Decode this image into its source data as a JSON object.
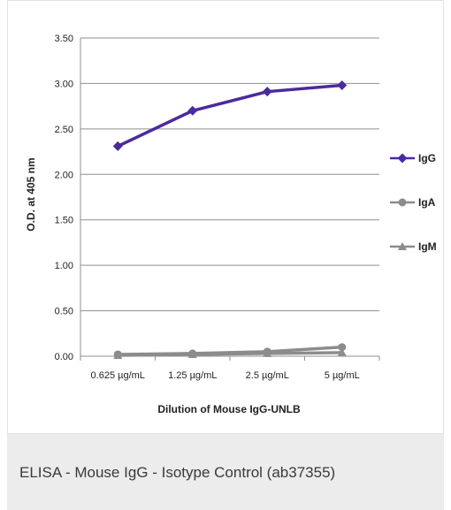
{
  "chart_data": {
    "type": "line",
    "xlabel": "Dilution of Mouse IgG-UNLB",
    "ylabel": "O.D. at 405 nm",
    "categories": [
      "0.625 µg/mL",
      "1.25 µg/mL",
      "2.5 µg/mL",
      "5 µg/mL"
    ],
    "ylim": [
      0,
      3.5
    ],
    "yticks": [
      "0.00",
      "0.50",
      "1.00",
      "1.50",
      "2.00",
      "2.50",
      "3.00",
      "3.50"
    ],
    "grid": true,
    "legend_position": "right",
    "series": [
      {
        "name": "IgG",
        "values": [
          2.31,
          2.7,
          2.91,
          2.98
        ],
        "color": "#4b2a9e",
        "marker": "diamond"
      },
      {
        "name": "IgA",
        "values": [
          0.02,
          0.03,
          0.05,
          0.1
        ],
        "color": "#8c8c8c",
        "marker": "circle"
      },
      {
        "name": "IgM",
        "values": [
          0.01,
          0.02,
          0.03,
          0.04
        ],
        "color": "#8c8c8c",
        "marker": "triangle"
      }
    ]
  },
  "caption": {
    "text": "ELISA - Mouse IgG - Isotype Control (ab37355)"
  }
}
